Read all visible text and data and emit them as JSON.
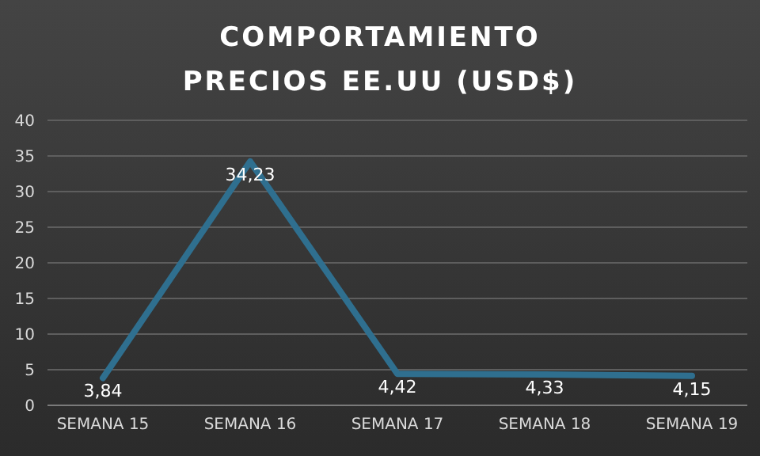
{
  "chart_data": {
    "type": "line",
    "title": "COMPORTAMIENTO  PRECIOS EE.UU (USD$)",
    "categories": [
      "SEMANA 15",
      "SEMANA 16",
      "SEMANA 17",
      "SEMANA 18",
      "SEMANA 19"
    ],
    "series": [
      {
        "color": "#2f6f8f",
        "values": [
          3.84,
          34.23,
          4.42,
          4.33,
          4.15
        ],
        "value_labels": [
          "3,84",
          "34,23",
          "4,42",
          "4,33",
          "4,15"
        ]
      }
    ],
    "ylim": [
      0,
      40
    ],
    "yticks": [
      0,
      5,
      10,
      15,
      20,
      25,
      30,
      35,
      40
    ],
    "grid": "y",
    "legend": false,
    "marker": "none",
    "line_style": "solid"
  }
}
